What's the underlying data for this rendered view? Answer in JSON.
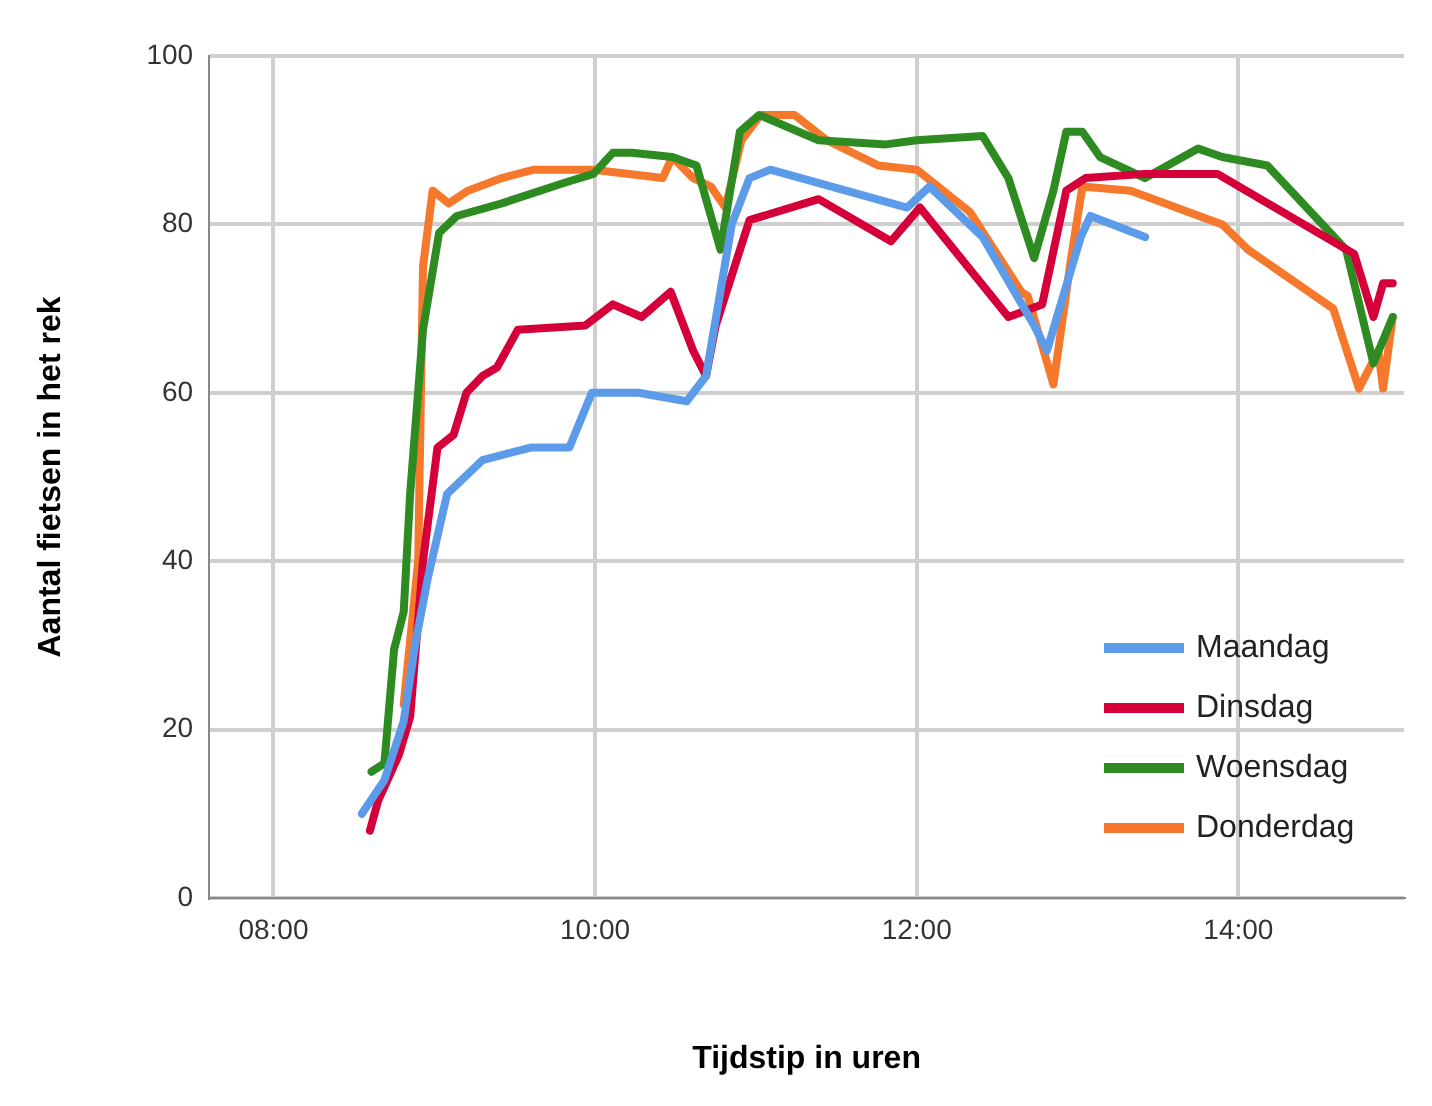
{
  "chart_data": {
    "type": "line",
    "xlabel": "Tijdstip in uren",
    "ylabel": "Aantal fietsen in het rek",
    "xlim": [
      7.6,
      15.03
    ],
    "ylim": [
      0,
      100
    ],
    "xticks": [
      {
        "value": 8,
        "label": "08:00"
      },
      {
        "value": 10,
        "label": "10:00"
      },
      {
        "value": 12,
        "label": "12:00"
      },
      {
        "value": 14,
        "label": "14:00"
      }
    ],
    "yticks": [
      0,
      20,
      40,
      60,
      80,
      100
    ],
    "grid": true,
    "legend": "bottom right",
    "marker": "none",
    "line_style": "solid",
    "series": [
      {
        "name": "Maandag",
        "color": "#5b9bea",
        "x": [
          8.55,
          8.69,
          8.81,
          8.88,
          8.96,
          9.08,
          9.3,
          9.6,
          9.84,
          9.98,
          10.27,
          10.57,
          10.69,
          10.85,
          10.96,
          11.09,
          11.94,
          12.08,
          12.41,
          12.73,
          12.81,
          13.02,
          13.08,
          13.42
        ],
        "values": [
          10,
          14,
          21,
          30,
          38,
          48,
          52,
          53.5,
          53.5,
          60,
          60,
          59,
          62,
          80,
          85.5,
          86.5,
          82,
          84.5,
          78.5,
          68,
          65,
          78.5,
          81,
          78.5
        ]
      },
      {
        "name": "Dinsdag",
        "color": "#d5003a",
        "x": [
          8.6,
          8.65,
          8.78,
          8.85,
          8.93,
          9.02,
          9.12,
          9.2,
          9.3,
          9.39,
          9.52,
          9.94,
          10.11,
          10.29,
          10.47,
          10.61,
          10.69,
          10.75,
          10.96,
          11.39,
          11.84,
          12.02,
          12.57,
          12.78,
          12.93,
          13.05,
          13.42,
          13.87,
          14.72,
          14.84,
          14.9,
          14.96
        ],
        "values": [
          8,
          11.5,
          17,
          21.5,
          40,
          53.5,
          55,
          60,
          62,
          63,
          67.5,
          68,
          70.5,
          69,
          72,
          65,
          62,
          68,
          80.5,
          83,
          78,
          82,
          69,
          70.5,
          84,
          85.5,
          86,
          86,
          76.5,
          69,
          73,
          73
        ]
      },
      {
        "name": "Woensdag",
        "color": "#2e8b22",
        "x": [
          8.61,
          8.69,
          8.75,
          8.81,
          8.85,
          8.93,
          9.03,
          9.14,
          9.42,
          9.82,
          9.99,
          10.11,
          10.23,
          10.48,
          10.63,
          10.78,
          10.9,
          11.02,
          11.39,
          11.81,
          12.0,
          12.41,
          12.57,
          12.73,
          12.85,
          12.93,
          13.03,
          13.14,
          13.42,
          13.75,
          13.9,
          14.18,
          14.67,
          14.84,
          14.96
        ],
        "values": [
          15,
          16,
          29.5,
          34,
          48,
          67.5,
          79,
          81,
          82.5,
          85,
          86,
          88.5,
          88.5,
          88,
          87,
          77,
          91,
          93,
          90,
          89.5,
          90,
          90.5,
          85.5,
          76,
          84,
          91,
          91,
          88,
          85.5,
          89,
          88,
          87,
          77,
          63.5,
          69
        ]
      },
      {
        "name": "Donderdag",
        "color": "#f5782d",
        "x": [
          8.81,
          8.9,
          8.93,
          8.99,
          9.09,
          9.21,
          9.42,
          9.62,
          9.99,
          10.42,
          10.48,
          10.61,
          10.72,
          10.81,
          10.91,
          11.03,
          11.24,
          11.44,
          11.76,
          12.0,
          12.33,
          12.65,
          12.69,
          12.85,
          12.96,
          13.03,
          13.33,
          13.9,
          14.06,
          14.59,
          14.75,
          14.87,
          14.9,
          14.96
        ],
        "values": [
          23,
          40,
          75,
          84,
          82.5,
          84,
          85.5,
          86.5,
          86.5,
          85.5,
          88,
          85.5,
          84.5,
          82,
          90,
          93,
          93,
          90,
          87,
          86.5,
          81.5,
          72,
          71.5,
          61,
          76,
          84.5,
          84,
          80,
          77,
          70,
          60.5,
          65,
          60.5,
          69
        ]
      }
    ]
  }
}
